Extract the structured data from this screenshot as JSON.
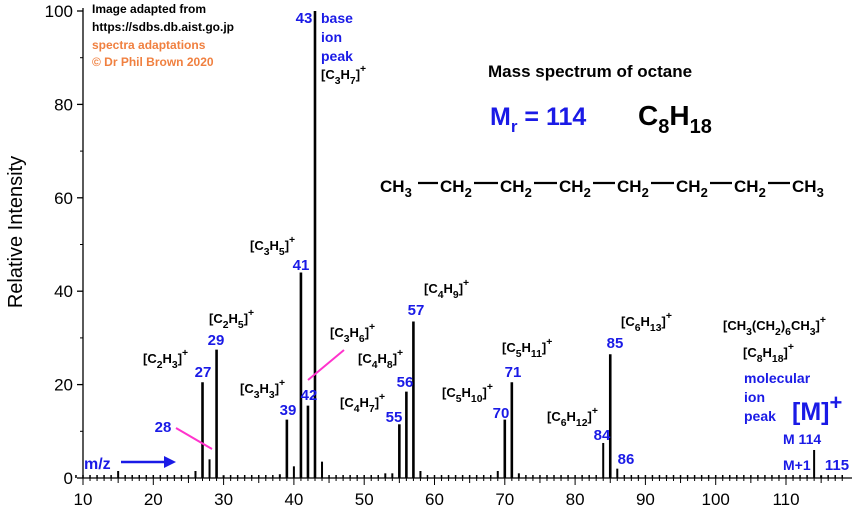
{
  "chart_data": {
    "type": "bar",
    "title": "Mass spectrum of octane",
    "ylabel": "Relative Intensity",
    "xlabel": "m/z",
    "xlim": [
      8,
      120
    ],
    "ylim": [
      0,
      100
    ],
    "x_ticks": [
      10,
      20,
      30,
      40,
      50,
      60,
      70,
      80,
      90,
      100,
      110
    ],
    "y_ticks": [
      0,
      20,
      40,
      60,
      80,
      100
    ],
    "peaks": [
      {
        "mz": 15,
        "intensity": 1.5
      },
      {
        "mz": 26,
        "intensity": 1.5
      },
      {
        "mz": 27,
        "intensity": 20.5
      },
      {
        "mz": 28,
        "intensity": 4.0
      },
      {
        "mz": 29,
        "intensity": 27.5
      },
      {
        "mz": 30,
        "intensity": 0.6
      },
      {
        "mz": 38,
        "intensity": 0.8
      },
      {
        "mz": 39,
        "intensity": 12.5
      },
      {
        "mz": 40,
        "intensity": 2.5
      },
      {
        "mz": 41,
        "intensity": 44.0
      },
      {
        "mz": 42,
        "intensity": 15.5
      },
      {
        "mz": 43,
        "intensity": 100.0
      },
      {
        "mz": 44,
        "intensity": 3.5
      },
      {
        "mz": 53,
        "intensity": 1.0
      },
      {
        "mz": 54,
        "intensity": 1.0
      },
      {
        "mz": 55,
        "intensity": 11.5
      },
      {
        "mz": 56,
        "intensity": 18.5
      },
      {
        "mz": 57,
        "intensity": 33.5
      },
      {
        "mz": 58,
        "intensity": 1.5
      },
      {
        "mz": 69,
        "intensity": 1.5
      },
      {
        "mz": 70,
        "intensity": 12.5
      },
      {
        "mz": 71,
        "intensity": 20.5
      },
      {
        "mz": 72,
        "intensity": 1.0
      },
      {
        "mz": 84,
        "intensity": 7.5
      },
      {
        "mz": 85,
        "intensity": 26.5
      },
      {
        "mz": 86,
        "intensity": 2.0
      },
      {
        "mz": 114,
        "intensity": 6.0
      },
      {
        "mz": 115,
        "intensity": 0.6
      }
    ],
    "baseline_noise_mz": [
      9,
      10,
      11,
      12,
      13,
      14,
      16,
      17,
      18,
      19,
      20,
      21,
      22,
      23,
      24,
      25,
      31,
      32,
      33,
      34,
      35,
      36,
      37,
      45,
      46,
      47,
      48,
      49,
      50,
      51,
      52,
      59,
      60,
      61,
      62,
      63,
      64,
      65,
      66,
      67,
      68,
      73,
      74,
      75,
      76,
      77,
      78,
      79,
      80,
      81,
      82,
      83,
      87,
      88,
      89,
      90,
      91,
      92,
      93,
      94,
      95,
      96,
      97,
      98,
      99,
      100,
      101,
      102,
      103,
      104,
      105,
      106,
      107,
      108,
      109,
      110,
      111,
      112,
      113,
      116,
      117,
      118
    ],
    "credits": {
      "line1": "Image adapted from",
      "line2": "https://sdbs.db.aist.go.jp",
      "line3": "spectra adaptations",
      "line4": "© Dr Phil Brown 2020"
    },
    "mr_label": "Mr = 114",
    "formula": "C8H18",
    "structure": [
      "CH3",
      "CH2",
      "CH2",
      "CH2",
      "CH2",
      "CH2",
      "CH2",
      "CH3"
    ],
    "colors": {
      "axis": "#000000",
      "peak": "#000000",
      "number": "#1a1ae6",
      "credit": "#f08040",
      "pointer": "#ff33cc"
    },
    "base_peak_label": [
      "base",
      "ion",
      "peak"
    ],
    "molecular_ion_label": [
      "molecular",
      "ion",
      "peak"
    ],
    "molecular_ion_symbol": "[M]+",
    "m_label": "M 114",
    "m1_label": "M+1",
    "fragment_labels": [
      {
        "mz": 27,
        "ion": "[C2H3]+"
      },
      {
        "mz": 29,
        "ion": "[C2H5]+"
      },
      {
        "mz": 39,
        "ion": "[C3H3]+"
      },
      {
        "mz": 41,
        "ion": "[C3H5]+"
      },
      {
        "mz": 42,
        "ion": "[C3H6]+"
      },
      {
        "mz": 43,
        "ion": "[C3H7]+"
      },
      {
        "mz": 55,
        "ion": "[C4H7]+"
      },
      {
        "mz": 56,
        "ion": "[C4H8]+"
      },
      {
        "mz": 57,
        "ion": "[C4H9]+"
      },
      {
        "mz": 70,
        "ion": "[C5H10]+"
      },
      {
        "mz": 71,
        "ion": "[C5H11]+"
      },
      {
        "mz": 84,
        "ion": "[C6H12]+"
      },
      {
        "mz": 85,
        "ion": "[C6H13]+"
      },
      {
        "mz": 114,
        "ion": "[C8H18]+"
      }
    ],
    "condensed_formula": "[CH3(CH2)6CH3]+"
  }
}
